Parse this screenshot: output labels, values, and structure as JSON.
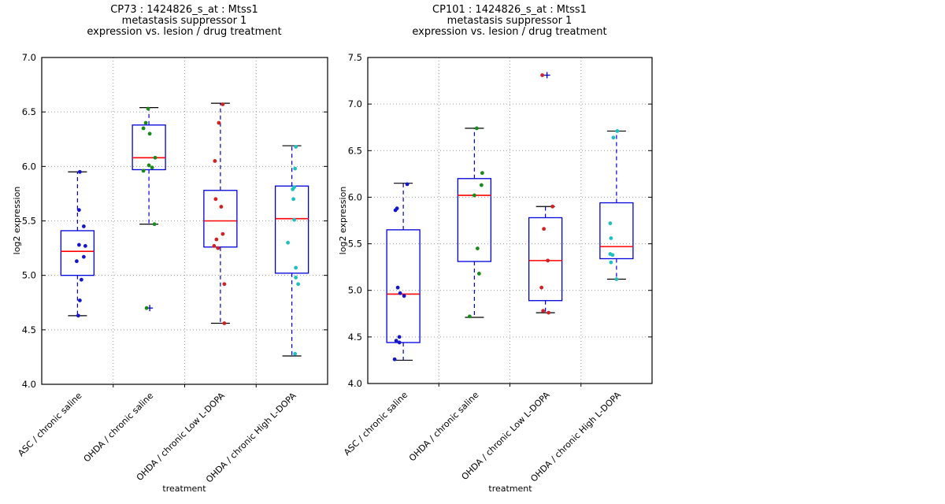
{
  "styles": {
    "background": "#ffffff",
    "frame_color": "#000000",
    "grid_color": "#999999",
    "box_color": "#0000dd",
    "whisker_color": "#0000dd",
    "cap_color": "#000000",
    "median_color": "#ff0000",
    "flier_color": "#0000cc",
    "text_color": "#000000"
  },
  "chart_data": [
    {
      "type": "boxplot",
      "title_lines": [
        "CP73 : 1424826_s_at : Mtss1",
        "metastasis suppressor 1",
        "expression vs. lesion / drug treatment"
      ],
      "xlabel": "treatment",
      "ylabel": "log2 expression",
      "ylim": [
        4.0,
        7.0
      ],
      "yticks": [
        7.0,
        6.5,
        6.0,
        5.5,
        5.0,
        4.5,
        4.0
      ],
      "groups": [
        {
          "label": "ASC / chronic saline",
          "color": "#1515cc",
          "whisker_low": 4.63,
          "q1": 5.0,
          "median": 5.22,
          "q3": 5.41,
          "whisker_high": 5.95,
          "outliers": [],
          "points": [
            [
              3,
              5.95
            ],
            [
              2,
              5.6
            ],
            [
              8,
              5.45
            ],
            [
              2,
              5.28
            ],
            [
              10,
              5.27
            ],
            [
              8,
              5.17
            ],
            [
              -1,
              5.13
            ],
            [
              5,
              4.96
            ],
            [
              3,
              4.77
            ],
            [
              1,
              4.63
            ]
          ]
        },
        {
          "label": "OHDA / chronic saline",
          "color": "#1a8a1a",
          "whisker_low": 5.47,
          "q1": 5.97,
          "median": 6.08,
          "q3": 6.38,
          "whisker_high": 6.54,
          "outliers": [
            [
              1,
              4.7
            ]
          ],
          "points": [
            [
              -1,
              6.53
            ],
            [
              -4,
              6.4
            ],
            [
              -7,
              6.35
            ],
            [
              1,
              6.3
            ],
            [
              8,
              6.08
            ],
            [
              0,
              6.01
            ],
            [
              4,
              5.99
            ],
            [
              -7,
              5.96
            ],
            [
              7,
              5.47
            ],
            [
              -3,
              4.7
            ]
          ]
        },
        {
          "label": "OHDA / chronic Low L-DOPA",
          "color": "#d42020",
          "whisker_low": 4.56,
          "q1": 5.26,
          "median": 5.5,
          "q3": 5.78,
          "whisker_high": 6.58,
          "outliers": [],
          "points": [
            [
              3,
              6.57
            ],
            [
              -2,
              6.4
            ],
            [
              -7,
              6.05
            ],
            [
              -6,
              5.7
            ],
            [
              1,
              5.63
            ],
            [
              3,
              5.38
            ],
            [
              -5,
              5.33
            ],
            [
              -8,
              5.27
            ],
            [
              -3,
              5.25
            ],
            [
              5,
              4.92
            ],
            [
              5,
              4.56
            ]
          ]
        },
        {
          "label": "OHDA / chronic High L-DOPA",
          "color": "#1fbfbf",
          "whisker_low": 4.26,
          "q1": 5.02,
          "median": 5.52,
          "q3": 5.82,
          "whisker_high": 6.19,
          "outliers": [],
          "points": [
            [
              5,
              6.18
            ],
            [
              4,
              5.98
            ],
            [
              3,
              5.81
            ],
            [
              1,
              5.79
            ],
            [
              2,
              5.7
            ],
            [
              3,
              5.51
            ],
            [
              -5,
              5.3
            ],
            [
              5,
              5.07
            ],
            [
              5,
              4.98
            ],
            [
              8,
              4.92
            ],
            [
              4,
              4.28
            ]
          ]
        }
      ]
    },
    {
      "type": "boxplot",
      "title_lines": [
        "CP101 : 1424826_s_at : Mtss1",
        "metastasis suppressor 1",
        "expression vs. lesion / drug treatment"
      ],
      "xlabel": "treatment",
      "ylabel": "log2 expression",
      "ylim": [
        4.0,
        7.5
      ],
      "yticks": [
        7.5,
        7.0,
        6.5,
        6.0,
        5.5,
        5.0,
        4.5,
        4.0
      ],
      "groups": [
        {
          "label": "ASC / chronic saline",
          "color": "#1515cc",
          "whisker_low": 4.25,
          "q1": 4.44,
          "median": 4.96,
          "q3": 5.65,
          "whisker_high": 6.15,
          "outliers": [],
          "points": [
            [
              5,
              6.14
            ],
            [
              -8,
              5.88
            ],
            [
              -10,
              5.86
            ],
            [
              -7,
              5.03
            ],
            [
              -4,
              4.97
            ],
            [
              1,
              4.94
            ],
            [
              -5,
              4.5
            ],
            [
              -9,
              4.46
            ],
            [
              -5,
              4.44
            ],
            [
              -11,
              4.26
            ]
          ]
        },
        {
          "label": "OHDA / chronic saline",
          "color": "#1a8a1a",
          "whisker_low": 4.71,
          "q1": 5.31,
          "median": 6.02,
          "q3": 6.2,
          "whisker_high": 6.74,
          "outliers": [],
          "points": [
            [
              3,
              6.74
            ],
            [
              10,
              6.26
            ],
            [
              9,
              6.13
            ],
            [
              0,
              6.02
            ],
            [
              4,
              5.45
            ],
            [
              6,
              5.18
            ],
            [
              -6,
              4.72
            ]
          ]
        },
        {
          "label": "OHDA / chronic Low L-DOPA",
          "color": "#d42020",
          "whisker_low": 4.76,
          "q1": 4.89,
          "median": 5.32,
          "q3": 5.78,
          "whisker_high": 5.9,
          "outliers": [
            [
              2,
              7.31
            ]
          ],
          "points": [
            [
              -4,
              7.31
            ],
            [
              9,
              5.9
            ],
            [
              -2,
              5.66
            ],
            [
              3,
              5.32
            ],
            [
              -5,
              5.03
            ],
            [
              -3,
              4.78
            ],
            [
              4,
              4.76
            ]
          ]
        },
        {
          "label": "OHDA / chronic High L-DOPA",
          "color": "#1fbfbf",
          "whisker_low": 5.12,
          "q1": 5.34,
          "median": 5.47,
          "q3": 5.94,
          "whisker_high": 6.71,
          "outliers": [],
          "points": [
            [
              1,
              6.71
            ],
            [
              -4,
              6.64
            ],
            [
              -8,
              5.72
            ],
            [
              -7,
              5.56
            ],
            [
              -8,
              5.39
            ],
            [
              -5,
              5.38
            ],
            [
              -7,
              5.3
            ],
            [
              0,
              5.12
            ]
          ]
        }
      ]
    }
  ]
}
